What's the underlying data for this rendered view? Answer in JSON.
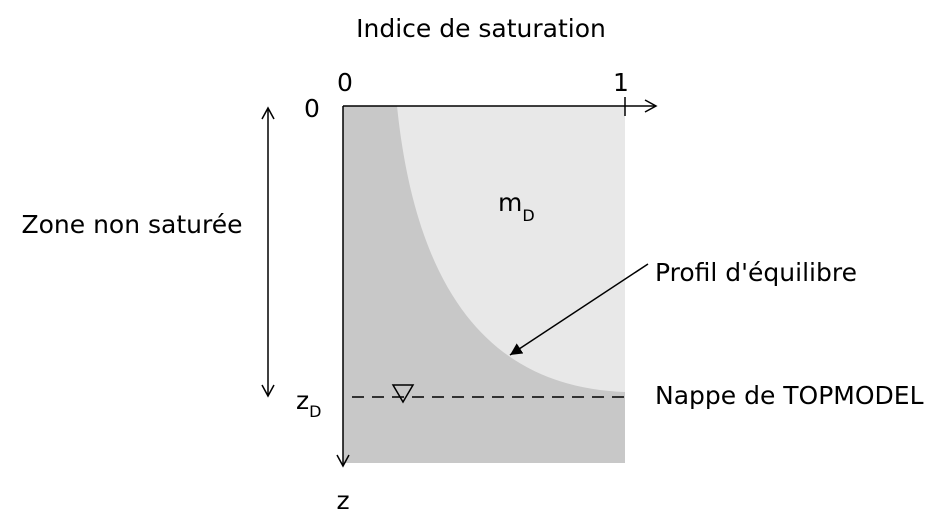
{
  "title": "Indice de saturation",
  "x_axis": {
    "ticks": [
      "0",
      "1"
    ]
  },
  "z_axis": {
    "label": "z",
    "top_label": "0",
    "water_level": {
      "base": "z",
      "sub": "D"
    }
  },
  "zone_label": "Zone non saturée",
  "region": {
    "base": "m",
    "sub": "D"
  },
  "curve_label": "Profil d'équilibre",
  "water_table_label": "Nappe de TOPMODEL"
}
